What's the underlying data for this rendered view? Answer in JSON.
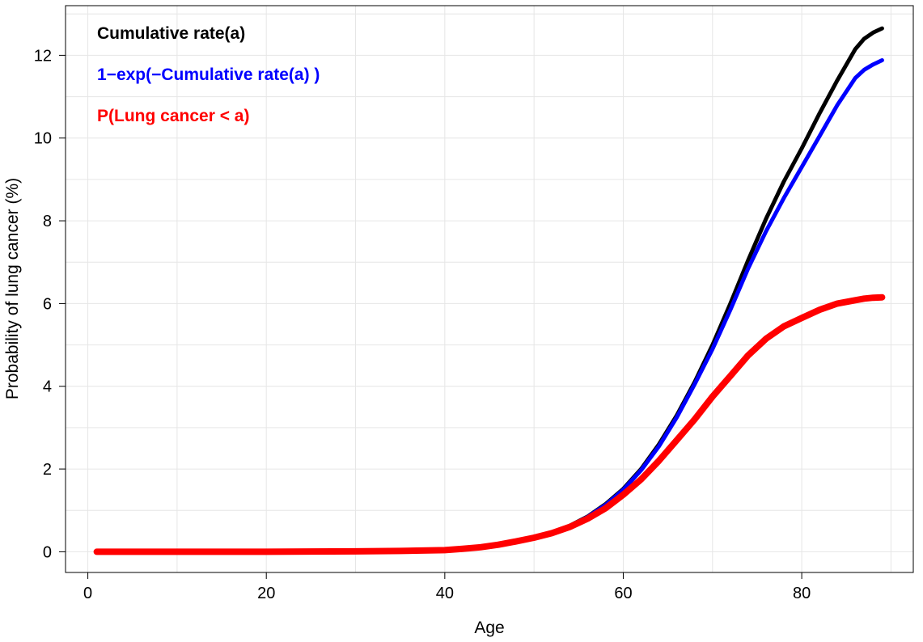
{
  "chart_data": {
    "type": "line",
    "title": "",
    "xlabel": "Age",
    "ylabel": "Probability of lung cancer (%)",
    "xlim": [
      -2.5,
      92.5
    ],
    "ylim": [
      -0.5,
      13.2
    ],
    "xticks": [
      0,
      20,
      40,
      60,
      80
    ],
    "yticks": [
      0,
      2,
      4,
      6,
      8,
      10,
      12
    ],
    "grid": true,
    "legend_position": "top-left",
    "series": [
      {
        "name": "Cumulative rate(a)",
        "color": "#000000",
        "x": [
          1,
          10,
          20,
          30,
          35,
          40,
          42,
          44,
          46,
          48,
          50,
          52,
          54,
          56,
          58,
          60,
          62,
          64,
          66,
          68,
          70,
          72,
          74,
          76,
          78,
          80,
          82,
          84,
          86,
          87,
          88,
          89
        ],
        "y": [
          0,
          0,
          0,
          0.01,
          0.02,
          0.04,
          0.07,
          0.11,
          0.17,
          0.25,
          0.34,
          0.46,
          0.63,
          0.85,
          1.15,
          1.52,
          2.0,
          2.6,
          3.3,
          4.1,
          5.0,
          6.0,
          7.05,
          8.05,
          8.95,
          9.75,
          10.6,
          11.4,
          12.15,
          12.4,
          12.55,
          12.65
        ]
      },
      {
        "name": "1−exp(−Cumulative rate(a) )",
        "color": "#0000ff",
        "x": [
          1,
          10,
          20,
          30,
          35,
          40,
          42,
          44,
          46,
          48,
          50,
          52,
          54,
          56,
          58,
          60,
          62,
          64,
          66,
          68,
          70,
          72,
          74,
          76,
          78,
          80,
          82,
          84,
          86,
          87,
          88,
          89
        ],
        "y": [
          0,
          0,
          0,
          0.01,
          0.02,
          0.04,
          0.07,
          0.11,
          0.17,
          0.25,
          0.34,
          0.46,
          0.62,
          0.84,
          1.13,
          1.5,
          1.97,
          2.55,
          3.25,
          4.05,
          4.9,
          5.85,
          6.85,
          7.75,
          8.55,
          9.3,
          10.05,
          10.8,
          11.45,
          11.65,
          11.78,
          11.88
        ]
      },
      {
        "name": "P(Lung cancer < a)",
        "color": "#ff0000",
        "x": [
          1,
          10,
          20,
          30,
          35,
          40,
          42,
          44,
          46,
          48,
          50,
          52,
          54,
          56,
          58,
          60,
          62,
          64,
          66,
          68,
          70,
          72,
          74,
          76,
          78,
          80,
          82,
          84,
          86,
          87,
          88,
          89
        ],
        "y": [
          0,
          0,
          0,
          0.01,
          0.02,
          0.04,
          0.07,
          0.11,
          0.17,
          0.25,
          0.34,
          0.45,
          0.6,
          0.8,
          1.05,
          1.38,
          1.75,
          2.2,
          2.7,
          3.2,
          3.75,
          4.25,
          4.75,
          5.15,
          5.45,
          5.65,
          5.85,
          6.0,
          6.08,
          6.12,
          6.14,
          6.15
        ]
      }
    ]
  }
}
